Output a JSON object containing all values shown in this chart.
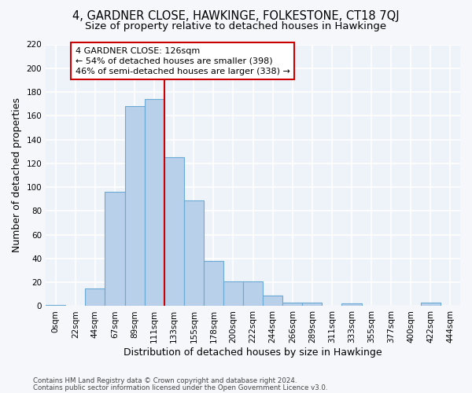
{
  "title": "4, GARDNER CLOSE, HAWKINGE, FOLKESTONE, CT18 7QJ",
  "subtitle": "Size of property relative to detached houses in Hawkinge",
  "xlabel": "Distribution of detached houses by size in Hawkinge",
  "ylabel": "Number of detached properties",
  "bar_labels": [
    "0sqm",
    "22sqm",
    "44sqm",
    "67sqm",
    "89sqm",
    "111sqm",
    "133sqm",
    "155sqm",
    "178sqm",
    "200sqm",
    "222sqm",
    "244sqm",
    "266sqm",
    "289sqm",
    "311sqm",
    "333sqm",
    "355sqm",
    "377sqm",
    "400sqm",
    "422sqm",
    "444sqm"
  ],
  "bar_heights": [
    1,
    0,
    15,
    96,
    168,
    174,
    125,
    89,
    38,
    21,
    21,
    9,
    3,
    3,
    0,
    2,
    0,
    0,
    0,
    3,
    0
  ],
  "bar_color": "#b8d0ea",
  "bar_edge_color": "#6aaad4",
  "vline_x": 5.5,
  "vline_color": "#cc0000",
  "annotation_text": "4 GARDNER CLOSE: 126sqm\n← 54% of detached houses are smaller (398)\n46% of semi-detached houses are larger (338) →",
  "annotation_box_color": "#ffffff",
  "annotation_box_edge": "#cc0000",
  "ylim": [
    0,
    220
  ],
  "yticks": [
    0,
    20,
    40,
    60,
    80,
    100,
    120,
    140,
    160,
    180,
    200,
    220
  ],
  "footer1": "Contains HM Land Registry data © Crown copyright and database right 2024.",
  "footer2": "Contains public sector information licensed under the Open Government Licence v3.0.",
  "bg_color": "#eef2f9",
  "grid_color": "#ffffff",
  "title_fontsize": 10.5,
  "subtitle_fontsize": 9.5,
  "axis_label_fontsize": 9,
  "tick_fontsize": 7.5,
  "ann_fontsize": 8
}
